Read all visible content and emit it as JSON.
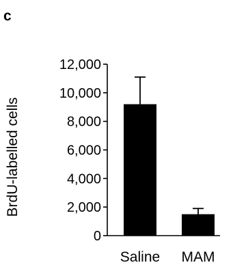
{
  "panel_label": "c",
  "chart_data": {
    "type": "bar",
    "title": "",
    "xlabel": "",
    "ylabel": "BrdU-labelled cells",
    "ylim": [
      0,
      12000
    ],
    "yticks": [
      0,
      2000,
      4000,
      6000,
      8000,
      10000,
      12000
    ],
    "ytick_labels": [
      "0",
      "2,000",
      "4,000",
      "6,000",
      "8,000",
      "10,000",
      "12,000"
    ],
    "categories": [
      "Saline",
      "MAM"
    ],
    "values": [
      9200,
      1500
    ],
    "errors": [
      1900,
      400
    ],
    "bar_color": "#000000",
    "grid": false
  }
}
